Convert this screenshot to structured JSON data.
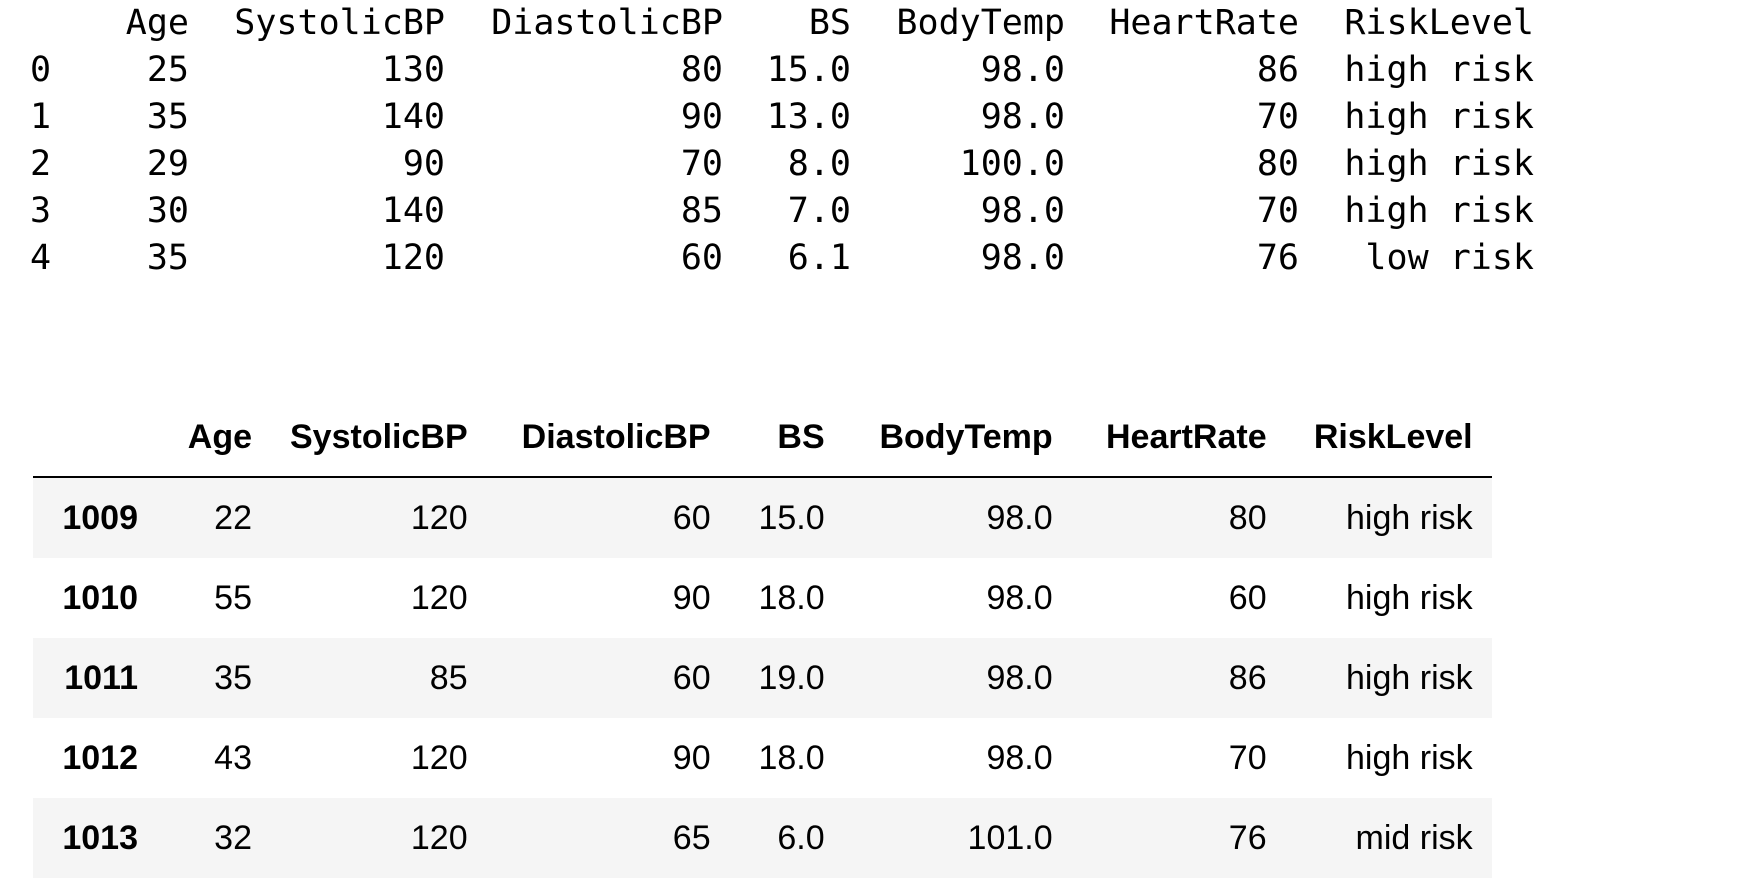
{
  "text_output": {
    "columns": [
      "Age",
      "SystolicBP",
      "DiastolicBP",
      "BS",
      "BodyTemp",
      "HeartRate",
      "RiskLevel"
    ],
    "rows": [
      {
        "index": "0",
        "Age": "25",
        "SystolicBP": "130",
        "DiastolicBP": "80",
        "BS": "15.0",
        "BodyTemp": "98.0",
        "HeartRate": "86",
        "RiskLevel": "high risk"
      },
      {
        "index": "1",
        "Age": "35",
        "SystolicBP": "140",
        "DiastolicBP": "90",
        "BS": "13.0",
        "BodyTemp": "98.0",
        "HeartRate": "70",
        "RiskLevel": "high risk"
      },
      {
        "index": "2",
        "Age": "29",
        "SystolicBP": "90",
        "DiastolicBP": "70",
        "BS": "8.0",
        "BodyTemp": "100.0",
        "HeartRate": "80",
        "RiskLevel": "high risk"
      },
      {
        "index": "3",
        "Age": "30",
        "SystolicBP": "140",
        "DiastolicBP": "85",
        "BS": "7.0",
        "BodyTemp": "98.0",
        "HeartRate": "70",
        "RiskLevel": "high risk"
      },
      {
        "index": "4",
        "Age": "35",
        "SystolicBP": "120",
        "DiastolicBP": "60",
        "BS": "6.1",
        "BodyTemp": "98.0",
        "HeartRate": "76",
        "RiskLevel": "low risk"
      }
    ]
  },
  "html_table": {
    "columns": [
      "Age",
      "SystolicBP",
      "DiastolicBP",
      "BS",
      "BodyTemp",
      "HeartRate",
      "RiskLevel"
    ],
    "rows": [
      {
        "index": "1009",
        "Age": "22",
        "SystolicBP": "120",
        "DiastolicBP": "60",
        "BS": "15.0",
        "BodyTemp": "98.0",
        "HeartRate": "80",
        "RiskLevel": "high risk"
      },
      {
        "index": "1010",
        "Age": "55",
        "SystolicBP": "120",
        "DiastolicBP": "90",
        "BS": "18.0",
        "BodyTemp": "98.0",
        "HeartRate": "60",
        "RiskLevel": "high risk"
      },
      {
        "index": "1011",
        "Age": "35",
        "SystolicBP": "85",
        "DiastolicBP": "60",
        "BS": "19.0",
        "BodyTemp": "98.0",
        "HeartRate": "86",
        "RiskLevel": "high risk"
      },
      {
        "index": "1012",
        "Age": "43",
        "SystolicBP": "120",
        "DiastolicBP": "90",
        "BS": "18.0",
        "BodyTemp": "98.0",
        "HeartRate": "70",
        "RiskLevel": "high risk"
      },
      {
        "index": "1013",
        "Age": "32",
        "SystolicBP": "120",
        "DiastolicBP": "65",
        "BS": "6.0",
        "BodyTemp": "101.0",
        "HeartRate": "76",
        "RiskLevel": "mid risk"
      }
    ]
  },
  "colors": {
    "stripe": "#f5f5f5",
    "header_rule": "#000000",
    "text": "#000000"
  }
}
